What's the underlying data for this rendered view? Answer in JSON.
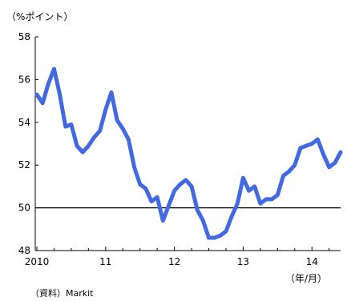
{
  "chart_data": {
    "type": "line",
    "y_unit_label": "（%ポイント）",
    "x_unit_label": "（年/月）",
    "source_note": "（資料）Markit",
    "ylim": [
      48,
      58
    ],
    "y_ticks": [
      48,
      50,
      52,
      54,
      56,
      58
    ],
    "x_tick_labels": [
      "2010",
      "11",
      "12",
      "13",
      "14"
    ],
    "x_tick_index": [
      0,
      12,
      24,
      36,
      48
    ],
    "reference_line": 50,
    "colors": {
      "series": "#4169e1",
      "axis": "#000000"
    },
    "series": [
      {
        "values": [
          55.3,
          54.9,
          55.8,
          56.5,
          55.3,
          53.8,
          53.9,
          52.9,
          52.6,
          52.9,
          53.3,
          53.6,
          54.6,
          55.4,
          54.1,
          53.7,
          53.2,
          51.9,
          51.1,
          50.9,
          50.3,
          50.5,
          49.4,
          50.1,
          50.8,
          51.1,
          51.3,
          51.0,
          49.9,
          49.4,
          48.6,
          48.6,
          48.7,
          48.9,
          49.6,
          50.2,
          51.4,
          50.8,
          51.0,
          50.2,
          50.4,
          50.4,
          50.6,
          51.5,
          51.7,
          52.0,
          52.8,
          52.9,
          53.0,
          53.2,
          52.5,
          51.9,
          52.1,
          52.6
        ]
      }
    ]
  }
}
